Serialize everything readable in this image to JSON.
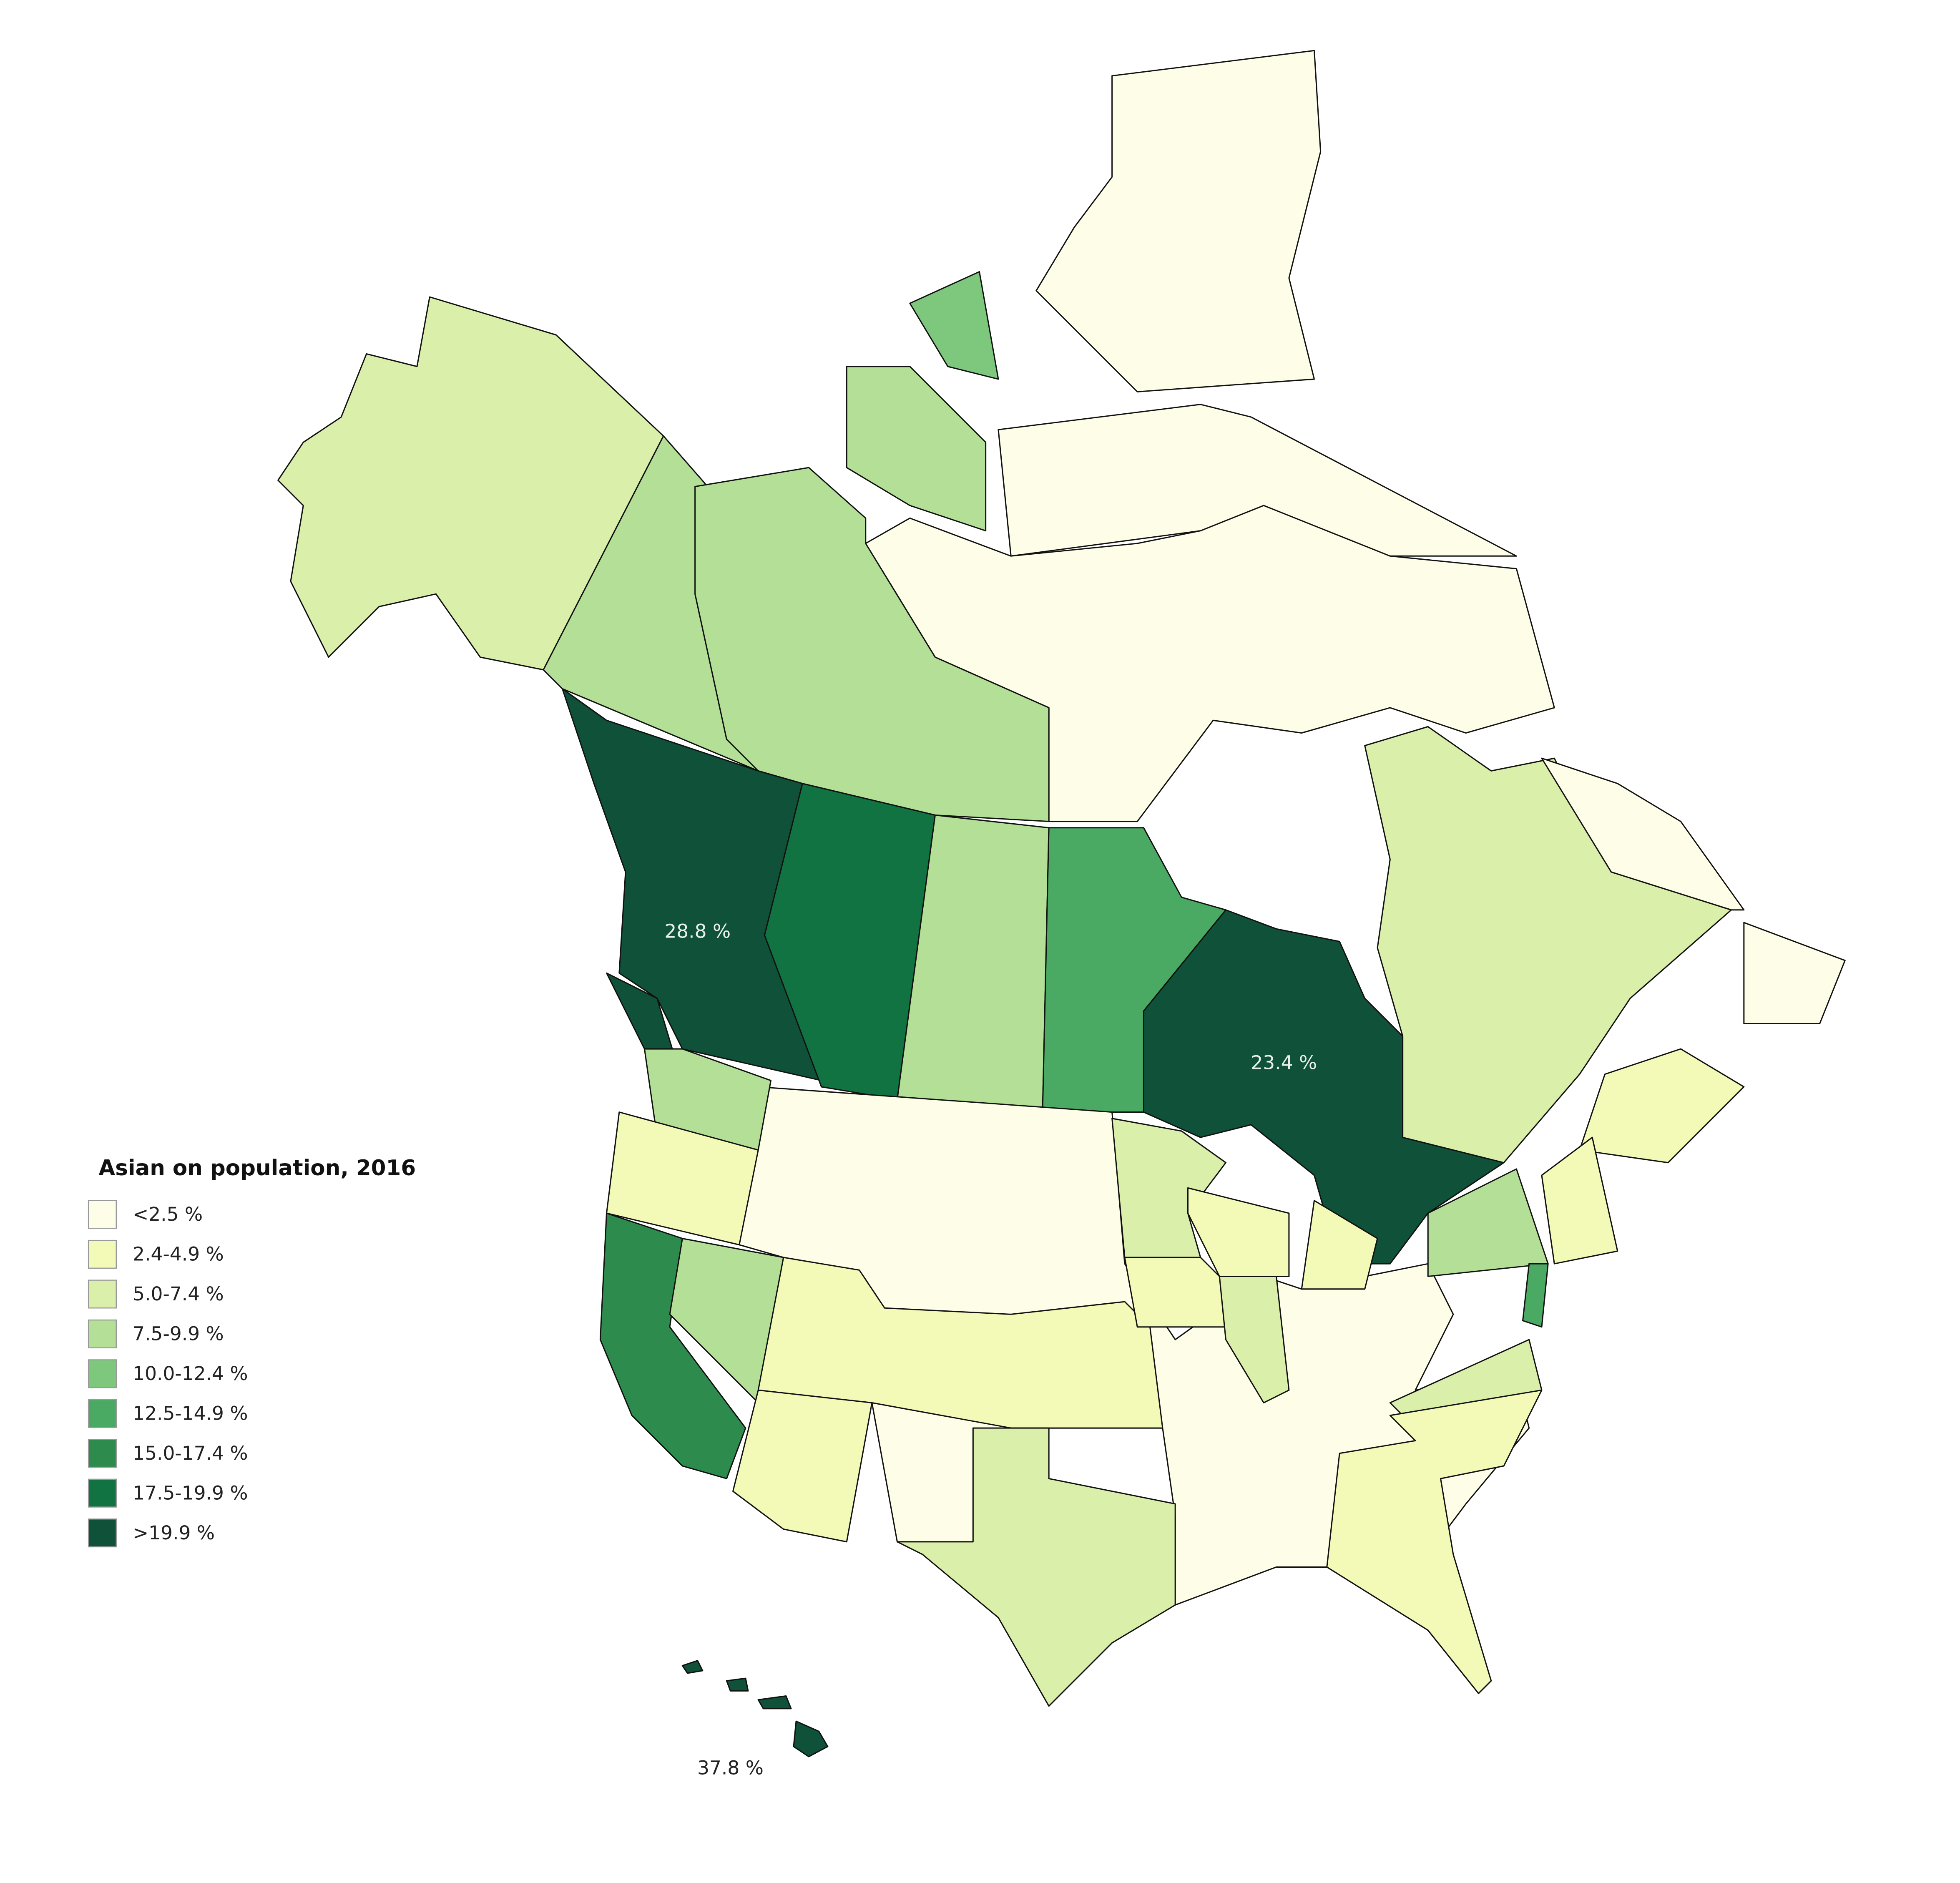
{
  "title": "Asian on population, 2016",
  "legend": [
    {
      "label": "<2.5 %",
      "color": "#fefee8"
    },
    {
      "label": "2.4-4.9 %",
      "color": "#f3fab8"
    },
    {
      "label": "5.0-7.4 %",
      "color": "#d9efaa"
    },
    {
      "label": "7.5-9.9 %",
      "color": "#b3df96"
    },
    {
      "label": "10.0-12.4 %",
      "color": "#7ec87e"
    },
    {
      "label": "12.5-14.9 %",
      "color": "#4aaa63"
    },
    {
      "label": "15.0-17.4 %",
      "color": "#2e8b4e"
    },
    {
      "label": "17.5-19.9 %",
      "color": "#117342"
    },
    {
      "label": ">19.9 %",
      "color": "#0f5139"
    }
  ],
  "annotations": [
    {
      "text": "28.8 %",
      "color": "#e8f0e8"
    },
    {
      "text": "23.4 %",
      "color": "#e8f0e8"
    },
    {
      "text": "37.8 %",
      "color": "#222222"
    }
  ]
}
